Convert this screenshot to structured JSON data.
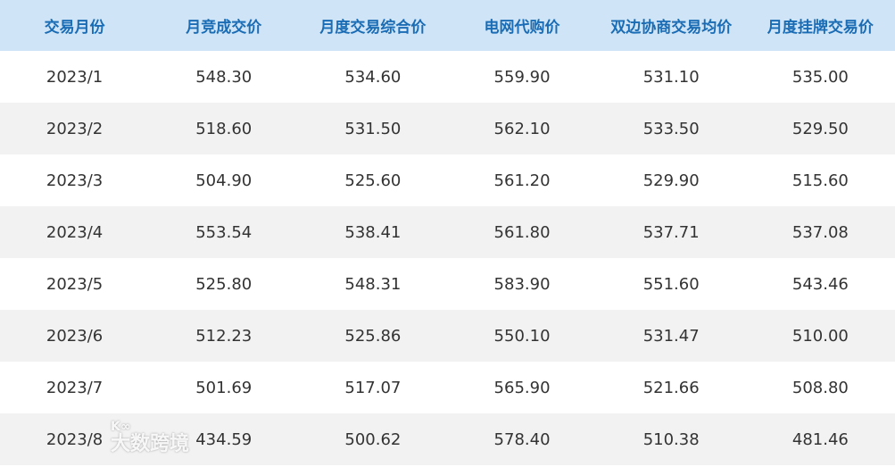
{
  "table": {
    "headers": [
      "交易月份",
      "月竞成交价",
      "月度交易综合价",
      "电网代购价",
      "双边协商交易均价",
      "月度挂牌交易价"
    ],
    "rows": [
      [
        "2023/1",
        "548.30",
        "534.60",
        "559.90",
        "531.10",
        "535.00"
      ],
      [
        "2023/2",
        "518.60",
        "531.50",
        "562.10",
        "533.50",
        "529.50"
      ],
      [
        "2023/3",
        "504.90",
        "525.60",
        "561.20",
        "529.90",
        "515.60"
      ],
      [
        "2023/4",
        "553.54",
        "538.41",
        "561.80",
        "537.71",
        "537.08"
      ],
      [
        "2023/5",
        "525.80",
        "548.31",
        "583.90",
        "551.60",
        "543.46"
      ],
      [
        "2023/6",
        "512.23",
        "525.86",
        "550.10",
        "531.47",
        "510.00"
      ],
      [
        "2023/7",
        "501.69",
        "517.07",
        "565.90",
        "521.66",
        "508.80"
      ],
      [
        "2023/8",
        "434.59",
        "500.62",
        "578.40",
        "510.38",
        "481.46"
      ]
    ]
  },
  "watermark": {
    "logo": "K99",
    "text": "大数跨境"
  },
  "colors": {
    "header_bg": "#cfe5f7",
    "header_text": "#1a6cb5",
    "alt_row": "#f2f2f2"
  }
}
